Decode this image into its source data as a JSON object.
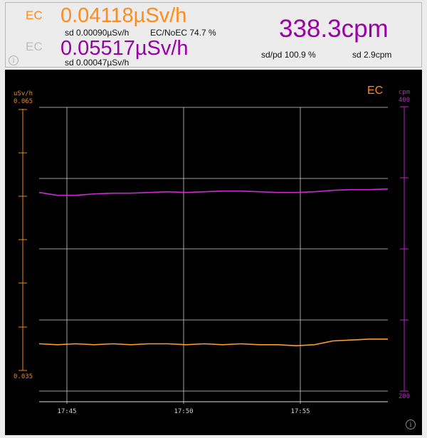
{
  "colors": {
    "ec": "#ff8c1a",
    "noec": "#9a00a8",
    "ec_label_inactive": "#bdbdbd",
    "orange_axis": "#e8891c",
    "magenta_axis": "#c21fd0",
    "grid": "#cfcfcf",
    "chart_bg": "#000000"
  },
  "header": {
    "ec_label_1": "EC",
    "ec_value": "0.04118µSv/h",
    "ec_sd": "sd 0.00090µSv/h",
    "ratio": "EC/NoEC 74.7 %",
    "ec_label_2": "EC",
    "noec_value": "0.05517µSv/h",
    "noec_sd": "sd 0.00047µSv/h",
    "cpm_value": "338.3cpm",
    "sd_pd": "sd/pd 100.9 %",
    "cpm_sd": "sd 2.9cpm",
    "info_icon": "i"
  },
  "chart": {
    "label": "EC",
    "left_axis_unit": "uSv/h",
    "left_axis_top": "0.065",
    "left_axis_bottom": "0.035",
    "right_axis_unit": "cpm",
    "right_axis_top": "400",
    "right_axis_bottom": "200",
    "x_tick_labels": [
      "17:45",
      "17:50",
      "17:55"
    ],
    "info_icon": "i"
  },
  "chart_data": {
    "type": "line",
    "x_ticks": [
      "17:45",
      "17:50",
      "17:55"
    ],
    "left_axis": {
      "label": "uSv/h",
      "range": [
        0.035,
        0.065
      ]
    },
    "right_axis": {
      "label": "cpm",
      "range": [
        200,
        400
      ]
    },
    "grid": true,
    "series": [
      {
        "name": "EC",
        "axis": "left",
        "color": "#ff9a2e",
        "values": [
          0.04,
          0.0399,
          0.04,
          0.0399,
          0.04,
          0.0399,
          0.04,
          0.04,
          0.0399,
          0.04,
          0.0399,
          0.04,
          0.0399,
          0.0399,
          0.0398,
          0.0399,
          0.0403,
          0.0404,
          0.0405,
          0.0405
        ]
      },
      {
        "name": "cpm",
        "axis": "right",
        "color": "#cc2ad6",
        "values": [
          340.0,
          338.0,
          338.0,
          339.0,
          339.5,
          339.5,
          340.0,
          340.5,
          340.0,
          340.5,
          341.0,
          341.0,
          340.5,
          340.0,
          340.0,
          340.5,
          341.5,
          342.0,
          342.0,
          342.5
        ]
      }
    ]
  }
}
